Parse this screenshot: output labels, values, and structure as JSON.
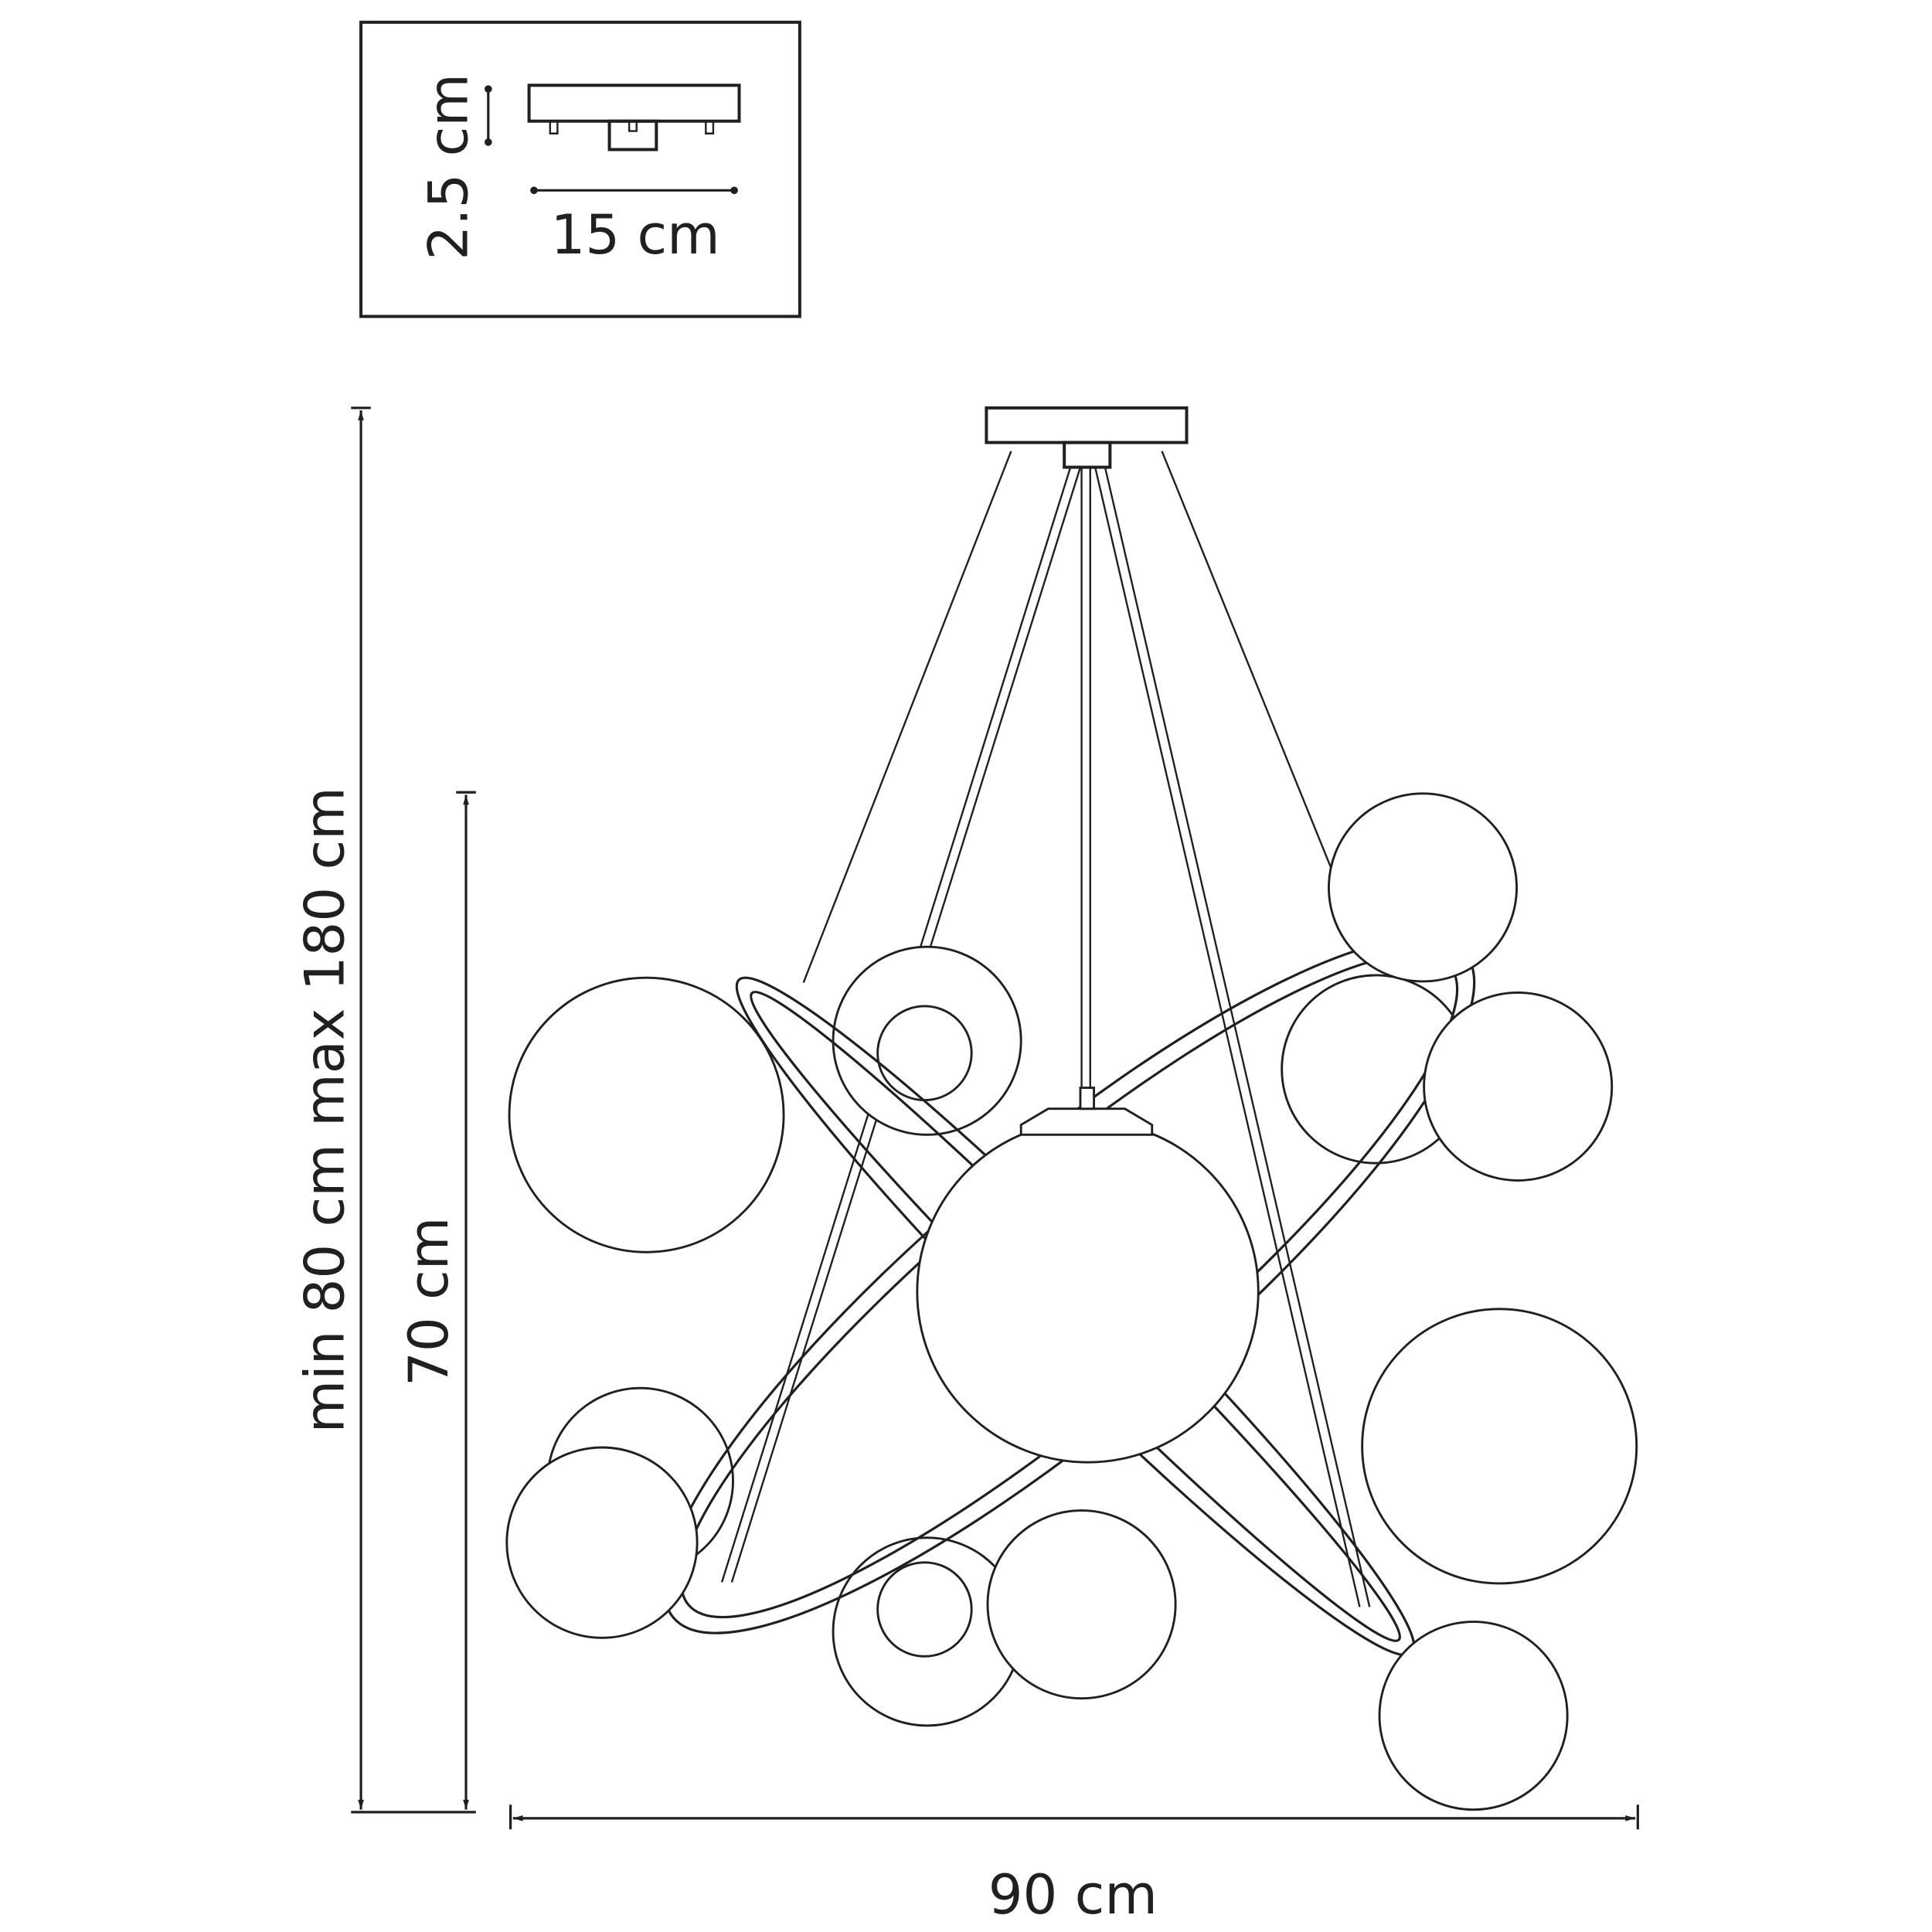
{
  "inset": {
    "height_label": "2.5 cm",
    "width_label": "15 cm"
  },
  "dimensions": {
    "total_height_label": "min 80 cm max 180 cm",
    "body_height_label": "70 cm",
    "width_label": "90 cm"
  },
  "colors": {
    "line": "#231f20",
    "background": "#ffffff"
  }
}
